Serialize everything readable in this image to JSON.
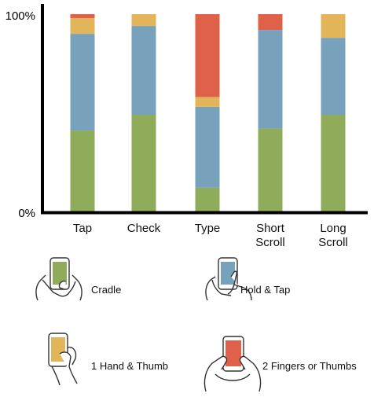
{
  "chart_data": {
    "type": "bar",
    "stacked": true,
    "categories": [
      {
        "lines": [
          "Tap"
        ]
      },
      {
        "lines": [
          "Check"
        ]
      },
      {
        "lines": [
          "Type"
        ]
      },
      {
        "lines": [
          "Short",
          "Scroll"
        ]
      },
      {
        "lines": [
          "Long",
          "Scroll"
        ]
      }
    ],
    "series": [
      {
        "name": "Cradle",
        "color": "#8fac5a",
        "values": [
          41,
          49,
          12,
          42,
          49
        ]
      },
      {
        "name": "Hold & Tap",
        "color": "#78a1bb",
        "values": [
          49,
          45,
          41,
          50,
          39
        ]
      },
      {
        "name": "1 Hand & Thumb",
        "color": "#e3b55b",
        "values": [
          8,
          6,
          5,
          0,
          12
        ]
      },
      {
        "name": "2 Fingers or Thumbs",
        "color": "#e0614a",
        "values": [
          2,
          0,
          42,
          8,
          0
        ]
      }
    ],
    "ylim": [
      0,
      100
    ],
    "ytick_labels": [
      "0%",
      "100%"
    ],
    "grid": false,
    "legend_position": "bottom"
  },
  "legend": {
    "cradle": "Cradle",
    "hold_tap": "Hold & Tap",
    "one_hand_thumb": "1 Hand & Thumb",
    "two_fingers_thumbs": "2 Fingers or Thumbs"
  }
}
